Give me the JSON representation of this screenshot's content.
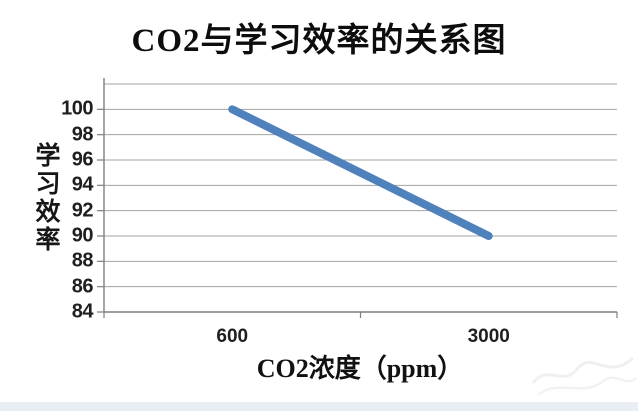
{
  "chart_data": {
    "type": "line",
    "title": "CO2与学习效率的关系图",
    "xlabel": "CO2浓度（ppm）",
    "ylabel": "学习效率",
    "categories": [
      "600",
      "3000"
    ],
    "series": [
      {
        "name": "学习效率",
        "values": [
          100,
          90
        ]
      }
    ],
    "y_axis": {
      "min": 84,
      "max": 102,
      "step": 2,
      "tick_labels": [
        "100",
        "98",
        "96",
        "94",
        "92",
        "90",
        "88",
        "86",
        "84"
      ]
    },
    "grid": true,
    "legend_position": "none",
    "colors": {
      "line": "#4f81bd",
      "gridline": "#a3a3a3",
      "axis": "#7f7f7f",
      "tick_text": "#1f1f1f",
      "title_text": "#0d0d0d",
      "footer_strip": "#e9edf4",
      "background": "#ffffff"
    }
  }
}
